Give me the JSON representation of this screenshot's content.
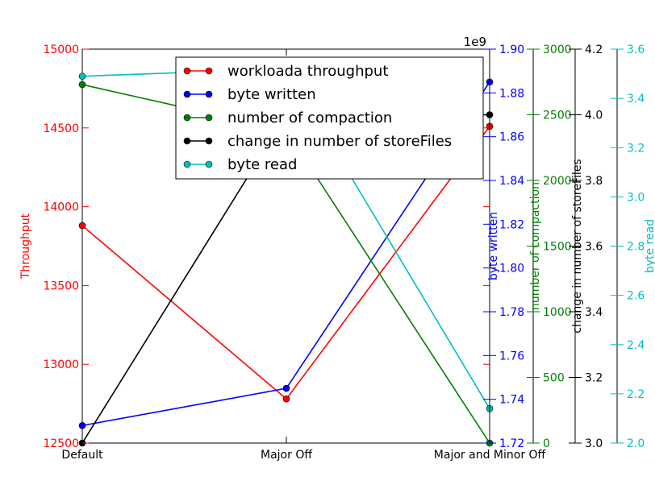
{
  "chart_data": {
    "type": "line",
    "categories": [
      "Default",
      "Major Off",
      "Major and Minor Off"
    ],
    "axes": [
      {
        "id": "throughput",
        "label": "Throughput",
        "color": "#ff0000",
        "min": 12500,
        "max": 15000,
        "ticks": [
          12500,
          13000,
          13500,
          14000,
          14500,
          15000
        ],
        "tick_labels": [
          "12500",
          "13000",
          "13500",
          "14000",
          "14500",
          "15000"
        ],
        "multiplier": ""
      },
      {
        "id": "bytes_written",
        "label": "byte written",
        "color": "#0000ff",
        "min": 1.72,
        "max": 1.9,
        "ticks": [
          1.72,
          1.74,
          1.76,
          1.78,
          1.8,
          1.82,
          1.84,
          1.86,
          1.88,
          1.9
        ],
        "tick_labels": [
          "1.72",
          "1.74",
          "1.76",
          "1.78",
          "1.80",
          "1.82",
          "1.84",
          "1.86",
          "1.88",
          "1.90"
        ],
        "multiplier": "1e9"
      },
      {
        "id": "compactions",
        "label": "number of compaction",
        "color": "#008000",
        "min": 0,
        "max": 3000,
        "ticks": [
          0,
          500,
          1000,
          1500,
          2000,
          2500,
          3000
        ],
        "tick_labels": [
          "0",
          "500",
          "1000",
          "1500",
          "2000",
          "2500",
          "3000"
        ],
        "multiplier": ""
      },
      {
        "id": "storefiles",
        "label": "change in number of storeFiles",
        "color": "#000000",
        "min": 3.0,
        "max": 4.2,
        "ticks": [
          3.0,
          3.2,
          3.4,
          3.6,
          3.8,
          4.0,
          4.2
        ],
        "tick_labels": [
          "3.0",
          "3.2",
          "3.4",
          "3.6",
          "3.8",
          "4.0",
          "4.2"
        ],
        "multiplier": ""
      },
      {
        "id": "bytes_read",
        "label": "byte read",
        "color": "#00bfbf",
        "min": 2.0,
        "max": 3.6,
        "ticks": [
          2.0,
          2.2,
          2.4,
          2.6,
          2.8,
          3.0,
          3.2,
          3.4,
          3.6
        ],
        "tick_labels": [
          "2.0",
          "2.2",
          "2.4",
          "2.6",
          "2.8",
          "3.0",
          "3.2",
          "3.4",
          "3.6"
        ],
        "multiplier": ""
      }
    ],
    "series": [
      {
        "name": "workloada throughput",
        "axis": "throughput",
        "color": "#ff0000",
        "values": [
          13880,
          12780,
          14510
        ]
      },
      {
        "name": "byte written",
        "axis": "bytes_written",
        "color": "#0000ff",
        "values": [
          1.728,
          1.745,
          1.885
        ]
      },
      {
        "name": "number of compaction",
        "axis": "compactions",
        "color": "#008000",
        "values": [
          2730,
          2380,
          0
        ]
      },
      {
        "name": "change in number of storeFiles",
        "axis": "storefiles",
        "color": "#000000",
        "values": [
          3.0,
          4.0,
          4.0
        ]
      },
      {
        "name": "byte read",
        "axis": "bytes_read",
        "color": "#00bfbf",
        "values": [
          3.49,
          3.52,
          2.14
        ]
      }
    ],
    "legend_position": "top-center",
    "grid": false
  }
}
